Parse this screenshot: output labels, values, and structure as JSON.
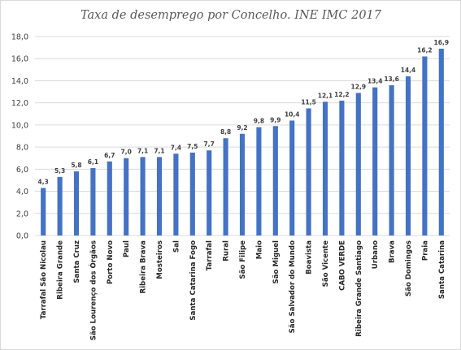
{
  "chart_data": {
    "type": "bar",
    "title": "Taxa de desemprego por Concelho. INE IMC 2017",
    "categories": [
      "Tarrafal São Nicolau",
      "Ribeira Grande",
      "Santa Cruz",
      "São Lourenço dos Órgãos",
      "Porto Novo",
      "Paul",
      "Ribeira Brava",
      "Mosteiros",
      "Sal",
      "Santa Catarina Fogo",
      "Tarrafal",
      "Rural",
      "São Filipe",
      "Maio",
      "São Miguel",
      "São Salvador do Mundo",
      "Boavista",
      "São Vicente",
      "CABO VERDE",
      "Ribeira Grande Santiago",
      "Urbano",
      "Brava",
      "São Domingos",
      "Praia",
      "Santa Catarina"
    ],
    "values": [
      4.3,
      5.3,
      5.8,
      6.1,
      6.7,
      7.0,
      7.1,
      7.1,
      7.4,
      7.5,
      7.7,
      8.8,
      9.2,
      9.8,
      9.9,
      10.4,
      11.5,
      12.1,
      12.2,
      12.9,
      13.4,
      13.6,
      14.4,
      16.2,
      16.9
    ],
    "data_labels": [
      "4,3",
      "5,3",
      "5,8",
      "6,1",
      "6,7",
      "7,0",
      "7,1",
      "7,1",
      "7,4",
      "7,5",
      "7,7",
      "8,8",
      "9,2",
      "9,8",
      "9,9",
      "10,4",
      "11,5",
      "12,1",
      "12,2",
      "12,9",
      "13,4",
      "13,6",
      "14,4",
      "16,2",
      "16,9"
    ],
    "ylim": [
      0,
      18
    ],
    "yticks": [
      0,
      2,
      4,
      6,
      8,
      10,
      12,
      14,
      16,
      18
    ],
    "ytick_labels": [
      "0,0",
      "2,0",
      "4,0",
      "6,0",
      "8,0",
      "10,0",
      "12,0",
      "14,0",
      "16,0",
      "18,0"
    ],
    "xlabel": "",
    "ylabel": "",
    "grid": true,
    "bar_color": "#4472c4"
  }
}
